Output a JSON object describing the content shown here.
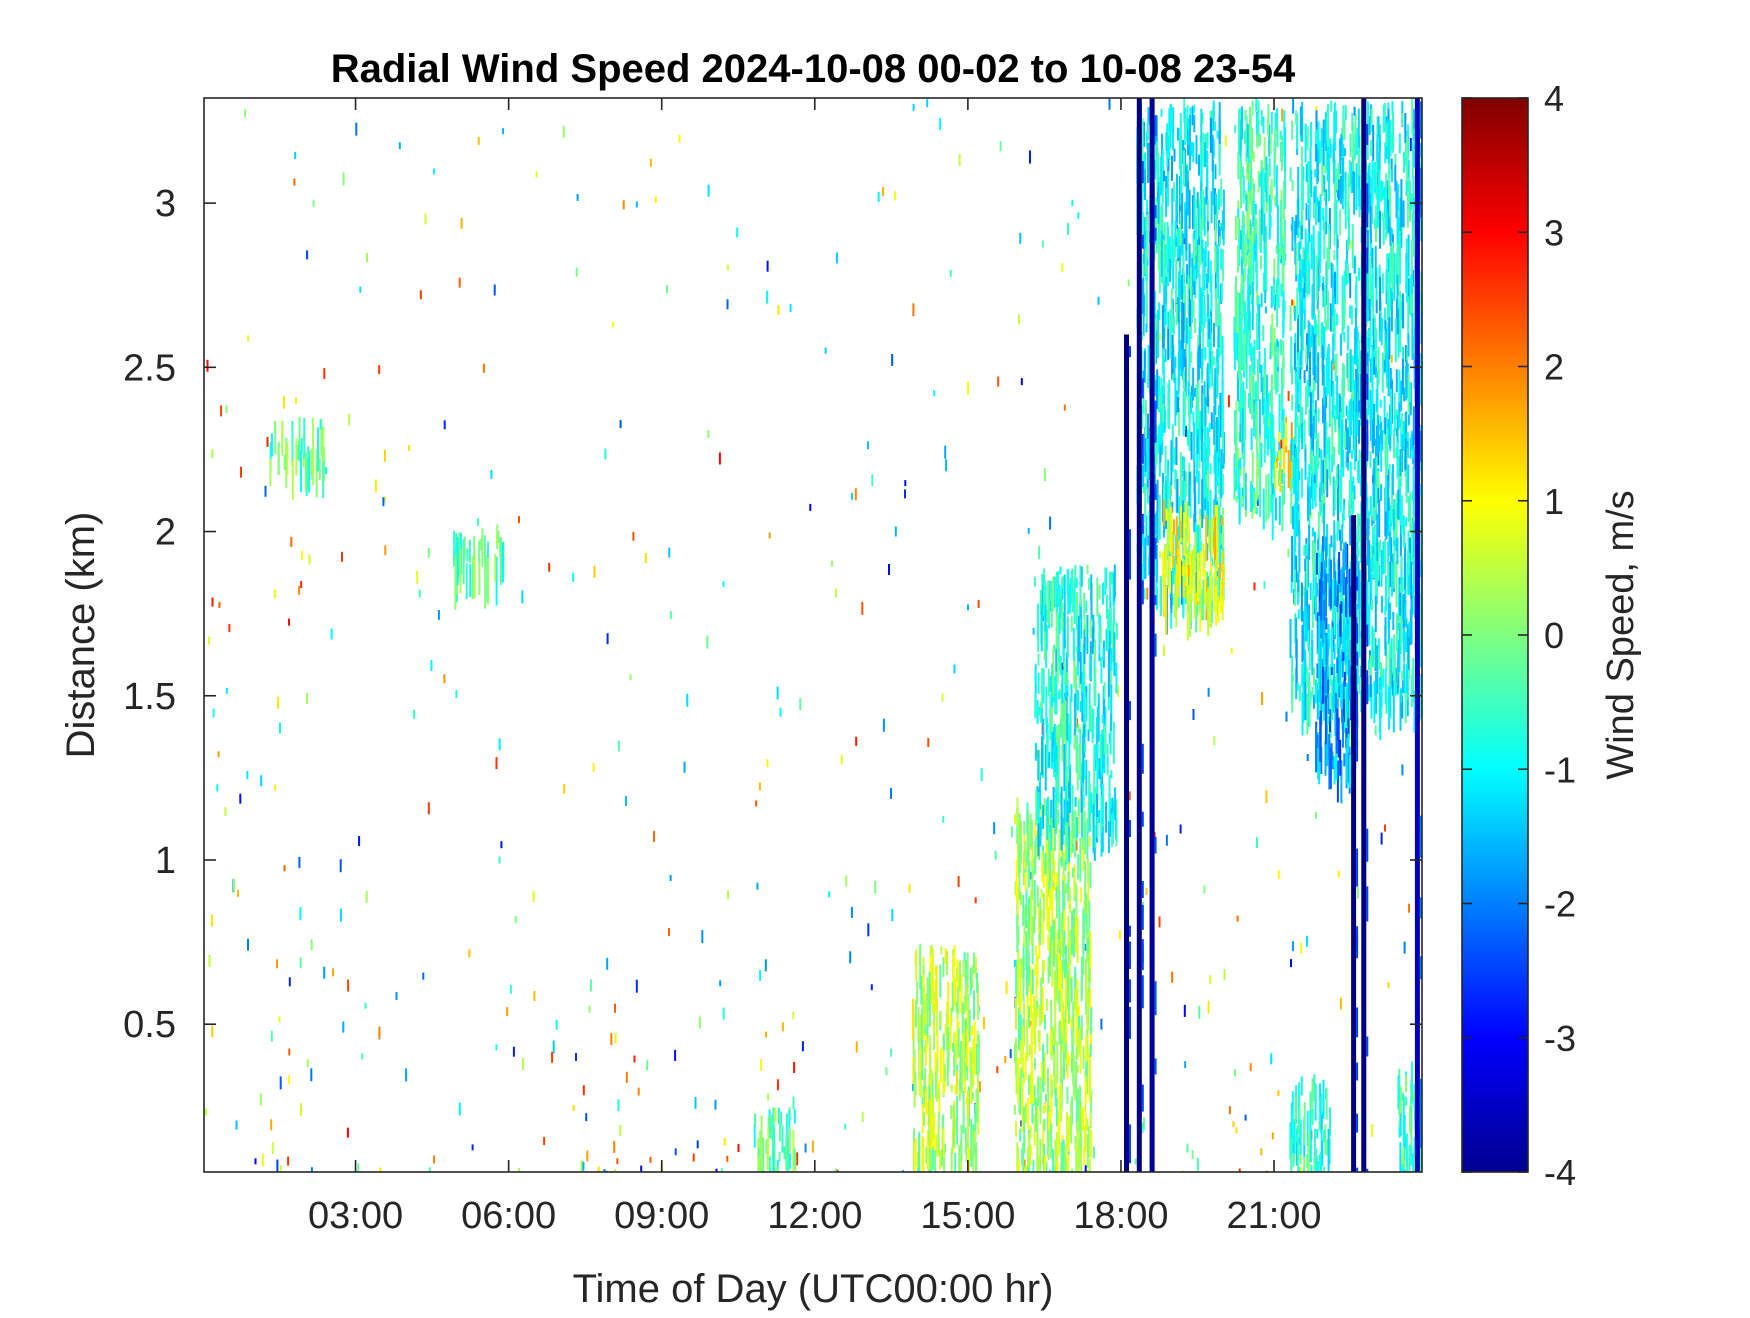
{
  "chart_data": {
    "type": "heatmap",
    "title": "Radial Wind Speed 2024-10-08 00-02 to 10-08 23-54",
    "xlabel": "Time of Day (UTC00:00 hr)",
    "ylabel": "Distance (km)",
    "colorbar_label": "Wind Speed, m/s",
    "colormap": "jet",
    "x_unit": "hours",
    "xlim": [
      0.03,
      23.9
    ],
    "ylim": [
      0.05,
      3.32
    ],
    "clim": [
      -4,
      4
    ],
    "x_ticks": [
      3,
      6,
      9,
      12,
      15,
      18,
      21
    ],
    "x_tick_labels": [
      "03:00",
      "06:00",
      "09:00",
      "12:00",
      "15:00",
      "18:00",
      "21:00"
    ],
    "y_ticks": [
      0.5,
      1,
      1.5,
      2,
      2.5,
      3
    ],
    "y_tick_labels": [
      "0.5",
      "1",
      "1.5",
      "2",
      "2.5",
      "3"
    ],
    "colorbar_ticks": [
      4,
      3,
      2,
      1,
      0,
      -1,
      -2,
      -3,
      -4
    ],
    "colorbar_tick_labels": [
      "4",
      "3",
      "2",
      "1",
      "0",
      "-1",
      "-2",
      "-3",
      "-4"
    ],
    "grid": false,
    "regions": [
      {
        "t0": 1.3,
        "t1": 2.4,
        "d0": 2.22,
        "d1": 2.35,
        "v": -0.2
      },
      {
        "t0": 4.9,
        "t1": 5.9,
        "d0": 1.9,
        "d1": 2.05,
        "v": -0.3
      },
      {
        "t0": 10.8,
        "t1": 11.6,
        "d0": 0.05,
        "d1": 0.25,
        "v": -0.2
      },
      {
        "t0": 13.9,
        "t1": 15.2,
        "d0": 0.1,
        "d1": 0.75,
        "v": 0.4
      },
      {
        "t0": 15.9,
        "t1": 17.4,
        "d0": 0.05,
        "d1": 1.2,
        "v": 0.3
      },
      {
        "t0": 16.3,
        "t1": 17.9,
        "d0": 1.1,
        "d1": 1.9,
        "v": -0.8
      },
      {
        "t0": 18.3,
        "t1": 20.0,
        "d0": 1.8,
        "d1": 3.32,
        "v": -1.0
      },
      {
        "t0": 18.8,
        "t1": 20.0,
        "d0": 1.8,
        "d1": 2.1,
        "v": 0.9
      },
      {
        "t0": 20.2,
        "t1": 21.2,
        "d0": 2.1,
        "d1": 3.32,
        "v": -0.6
      },
      {
        "t0": 21.0,
        "t1": 21.4,
        "d0": 2.2,
        "d1": 2.35,
        "v": 1.3
      },
      {
        "t0": 21.3,
        "t1": 23.9,
        "d0": 1.5,
        "d1": 3.32,
        "v": -1.0
      },
      {
        "t0": 21.8,
        "t1": 22.6,
        "d0": 1.3,
        "d1": 2.0,
        "v": -1.8
      },
      {
        "t0": 21.3,
        "t1": 22.1,
        "d0": 0.05,
        "d1": 0.35,
        "v": -0.7
      },
      {
        "t0": 23.4,
        "t1": 23.9,
        "d0": 0.05,
        "d1": 0.4,
        "v": -0.5
      }
    ],
    "columns": [
      {
        "t": 18.1,
        "d0": 0.05,
        "d1": 2.6,
        "v": -4
      },
      {
        "t": 18.35,
        "d0": 0.05,
        "d1": 3.32,
        "v": -4
      },
      {
        "t": 18.6,
        "d0": 0.05,
        "d1": 3.32,
        "v": -3.8
      },
      {
        "t": 22.55,
        "d0": 0.05,
        "d1": 2.05,
        "v": -4
      },
      {
        "t": 22.75,
        "d0": 0.05,
        "d1": 3.32,
        "v": -4
      },
      {
        "t": 23.8,
        "d0": 0.05,
        "d1": 3.32,
        "v": -3.5
      }
    ]
  }
}
